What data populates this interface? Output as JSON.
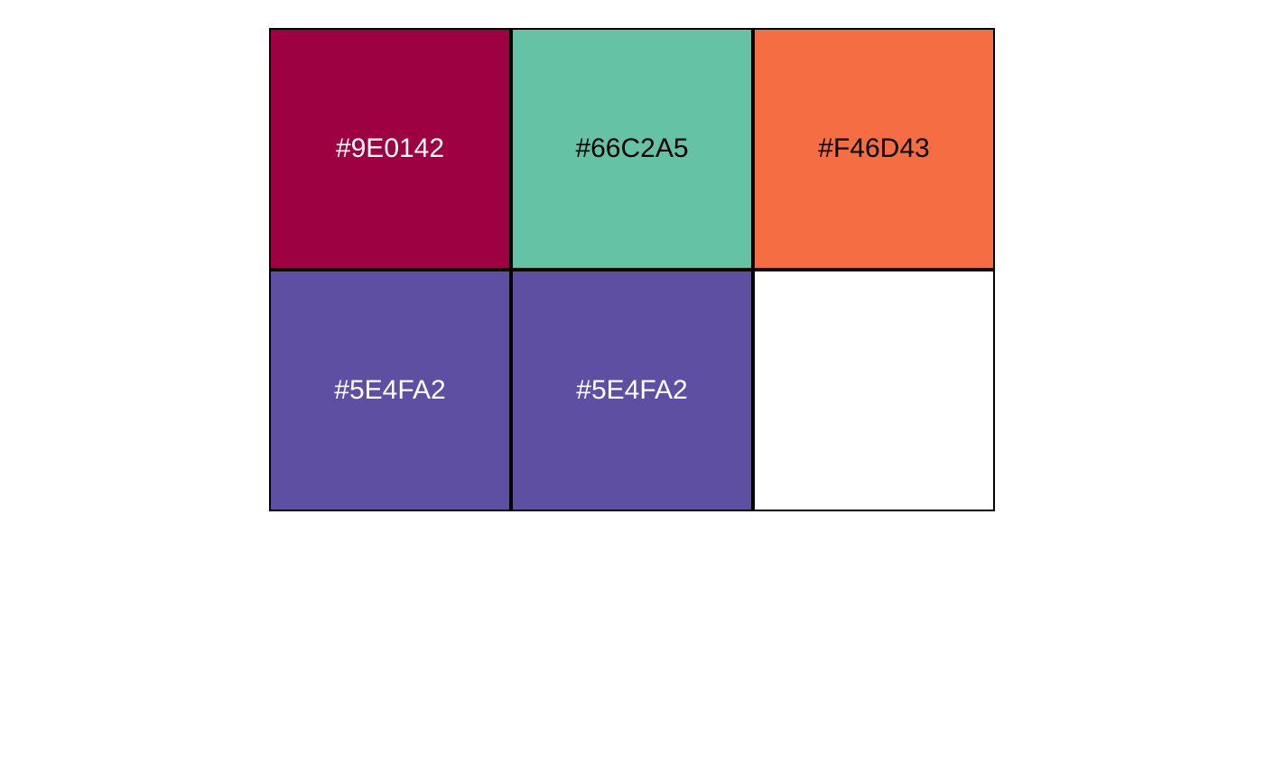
{
  "swatches": [
    {
      "label": "#9E0142",
      "fill": "#9E0142",
      "text_color": "#FFFFFF"
    },
    {
      "label": "#66C2A5",
      "fill": "#66C2A5",
      "text_color": "#000000"
    },
    {
      "label": "#F46D43",
      "fill": "#F46D43",
      "text_color": "#000000"
    },
    {
      "label": "#5E4FA2",
      "fill": "#5E4FA2",
      "text_color": "#FFFFFF"
    },
    {
      "label": "#5E4FA2",
      "fill": "#5E4FA2",
      "text_color": "#FFFFFF"
    },
    {
      "label": "",
      "fill": "#FFFFFF",
      "text_color": "#000000"
    }
  ]
}
